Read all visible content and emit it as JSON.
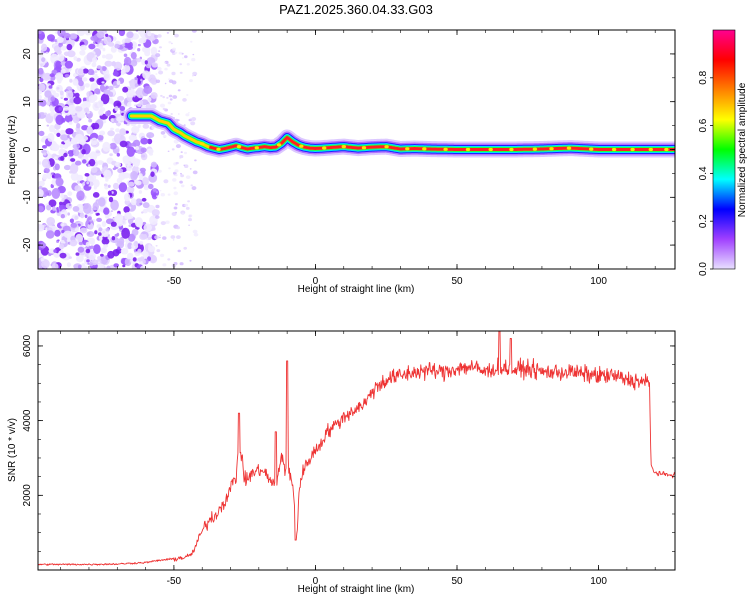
{
  "title": "PAZ1.2025.360.04.33.G03",
  "chart_data": [
    {
      "type": "heatmap",
      "name": "spectrogram",
      "xlabel": "Height of straight line (km)",
      "ylabel": "Frequency (Hz)",
      "xlim": [
        -98,
        127
      ],
      "ylim": [
        -25,
        25
      ],
      "xticks": [
        -50,
        0,
        50,
        100
      ],
      "yticks": [
        20,
        10,
        0,
        -10,
        -20
      ],
      "ridge": {
        "x": [
          -65,
          -60,
          -58,
          -55,
          -52,
          -50,
          -48,
          -46,
          -44,
          -42,
          -40,
          -38,
          -36,
          -34,
          -32,
          -30,
          -28,
          -26,
          -24,
          -22,
          -20,
          -18,
          -16,
          -14,
          -12,
          -10,
          -8,
          -6,
          -4,
          -2,
          0,
          5,
          10,
          15,
          20,
          25,
          30,
          35,
          40,
          50,
          60,
          70,
          80,
          90,
          100,
          110,
          120,
          127
        ],
        "freq": [
          7,
          7,
          7,
          6,
          5.5,
          4.2,
          3.6,
          2.8,
          2.2,
          1.6,
          1.2,
          0.6,
          0.3,
          0,
          0.2,
          0.5,
          0.8,
          0.4,
          0.1,
          0.3,
          0.4,
          0.6,
          0.4,
          0.5,
          1.3,
          2.5,
          1.6,
          0.9,
          0.5,
          0.3,
          0.2,
          0.4,
          0.6,
          0.3,
          0.5,
          0.6,
          0.1,
          0.2,
          0.1,
          0,
          0,
          0,
          0.1,
          0.3,
          0,
          0,
          0,
          0
        ]
      },
      "colorbar": {
        "label": "Normalized spectral amplitude",
        "range": [
          0.0,
          1.0
        ],
        "ticks": [
          "0.0",
          "0.2",
          "0.4",
          "0.6",
          "0.8"
        ],
        "colors": [
          "#e8e0ff",
          "#a040ff",
          "#0000ff",
          "#00ffff",
          "#00ff00",
          "#ffff00",
          "#ff8000",
          "#ff0000",
          "#ff0090"
        ]
      }
    },
    {
      "type": "line",
      "name": "snr",
      "xlabel": "Height of straight line (km)",
      "ylabel": "SNR (10 * v/v)",
      "xlim": [
        -98,
        127
      ],
      "ylim": [
        0,
        6400
      ],
      "xticks": [
        -50,
        0,
        50,
        100
      ],
      "yticks": [
        6000,
        4000,
        2000
      ],
      "series": [
        {
          "name": "SNR",
          "color": "#ee3333",
          "x": [
            -98,
            -80,
            -70,
            -60,
            -55,
            -50,
            -47,
            -45,
            -43,
            -41,
            -38,
            -35,
            -32,
            -30,
            -28,
            -27,
            -25,
            -22,
            -19,
            -16,
            -14,
            -12,
            -10.5,
            -10,
            -9.5,
            -8,
            -7,
            -6.5,
            -6,
            -5,
            -4,
            -2,
            0,
            2,
            4,
            6,
            10,
            14,
            18,
            20,
            25,
            30,
            35,
            40,
            45,
            50,
            55,
            60,
            65,
            70,
            75,
            80,
            90,
            100,
            105,
            110,
            115,
            118,
            118.5,
            120,
            124,
            127
          ],
          "y": [
            150,
            150,
            160,
            200,
            260,
            300,
            330,
            350,
            500,
            900,
            1300,
            1500,
            1850,
            2200,
            2500,
            3500,
            2400,
            2600,
            2700,
            2400,
            2200,
            3100,
            2600,
            4000,
            2700,
            2200,
            1400,
            900,
            1900,
            2500,
            2700,
            3000,
            3200,
            3400,
            3700,
            3800,
            4100,
            4300,
            4500,
            4800,
            5100,
            5200,
            5300,
            5350,
            5300,
            5400,
            5450,
            5300,
            5450,
            5350,
            5400,
            5300,
            5300,
            5200,
            5200,
            5100,
            5050,
            5000,
            2800,
            2600,
            2550,
            2550
          ]
        }
      ],
      "spikes": [
        {
          "x": -27,
          "y": 4200
        },
        {
          "x": -14,
          "y": 3700
        },
        {
          "x": -10,
          "y": 5600
        },
        {
          "x": -7,
          "y": 800
        },
        {
          "x": 65,
          "y": 6400
        },
        {
          "x": 69,
          "y": 6200
        }
      ]
    }
  ]
}
